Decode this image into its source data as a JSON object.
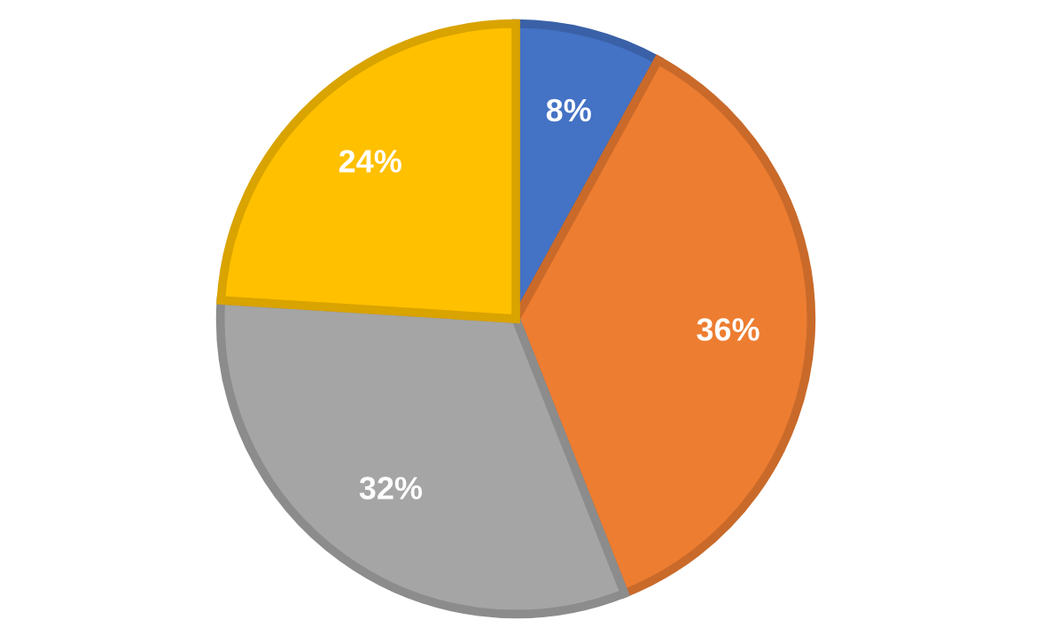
{
  "chart_data": {
    "type": "pie",
    "categories": [
      null,
      null,
      null,
      null
    ],
    "values": [
      8,
      36,
      32,
      24
    ],
    "colors": [
      "#4472c4",
      "#ed7d31",
      "#a5a5a5",
      "#ffc000"
    ],
    "value_labels": [
      "8%",
      "36%",
      "32%",
      "24%"
    ]
  }
}
